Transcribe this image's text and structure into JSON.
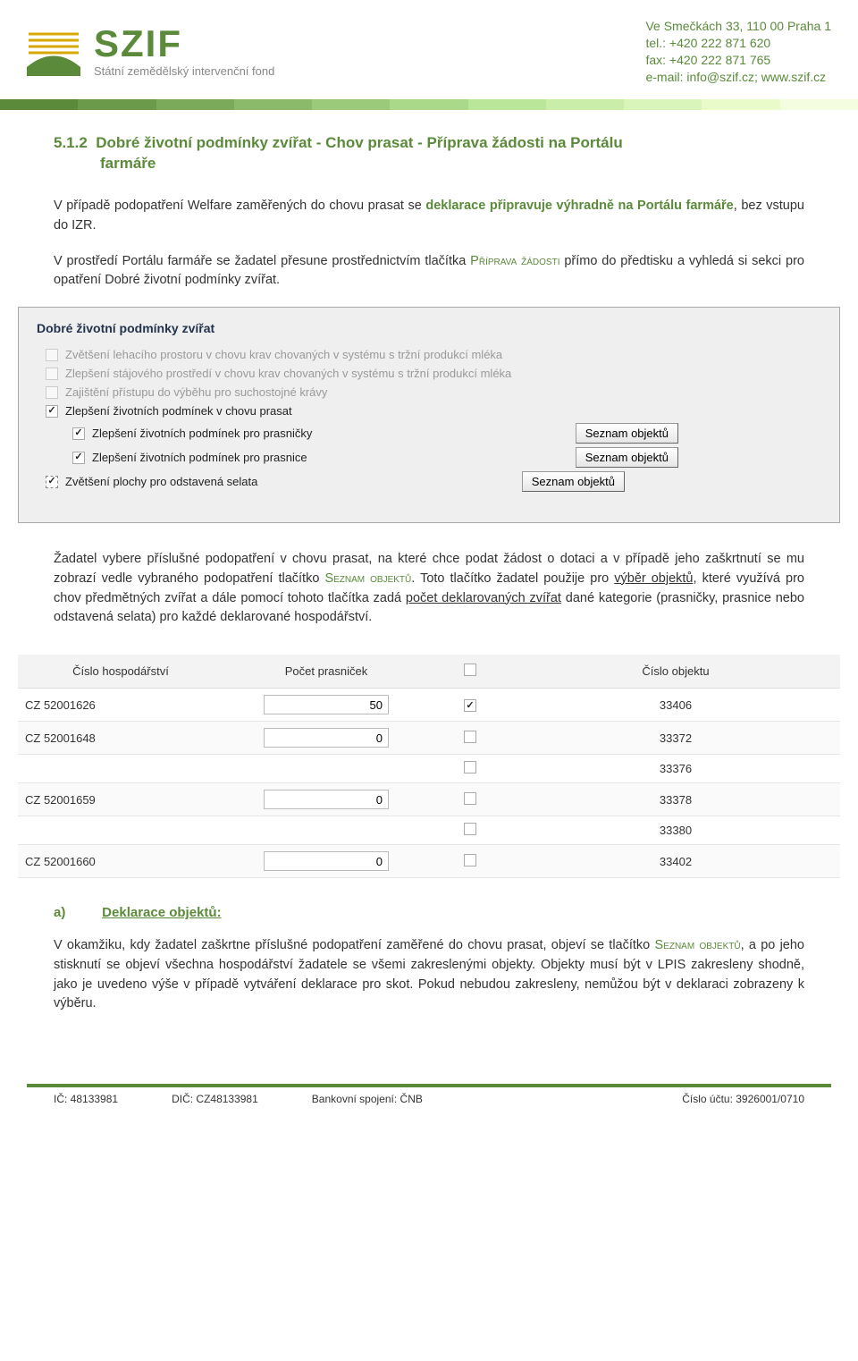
{
  "header": {
    "logo_main": "SZIF",
    "logo_sub": "Státní zemědělský intervenční fond",
    "addr": "Ve Smečkách 33, 110 00 Praha 1",
    "tel": "tel.: +420 222 871 620",
    "fax": "fax: +420 222 871 765",
    "mail": "e-mail: info@szif.cz; www.szif.cz"
  },
  "bar_colors": [
    "#5a8a3a",
    "#6a9a4a",
    "#7aaa5a",
    "#8aba6a",
    "#9aca7a",
    "#aad98a",
    "#bae69a",
    "#caeeaa",
    "#d9f5ba",
    "#e8fbc9",
    "#f4fde0"
  ],
  "section": {
    "num": "5.1.2",
    "title_a": "Dobré životní podmínky zvířat - Chov prasat -  Příprava žádosti na Portálu",
    "title_b": "farmáře"
  },
  "para1_a": "V případě podopatření Welfare zaměřených do chovu prasat se ",
  "para1_b": "deklarace připravuje výhradně na Portálu farmáře",
  "para1_c": ", bez vstupu do IZR.",
  "para2_a": "V prostředí Portálu farmáře se žadatel přesune prostřednictvím tlačítka ",
  "para2_b": "Příprava žádosti",
  "para2_c": " přímo do předtisku a vyhledá si sekci pro opatření Dobré životní podmínky zvířat.",
  "panel": {
    "title": "Dobré životní podmínky zvířat",
    "opt1": "Zvětšení lehacího prostoru v chovu krav chovaných v systému s tržní produkcí mléka",
    "opt2": "Zlepšení stájového prostředí v chovu krav chovaných v systému s tržní produkcí mléka",
    "opt3": "Zajištění přístupu do výběhu pro suchostojné krávy",
    "opt4": "Zlepšení životních podmínek v chovu prasat",
    "sub1": "Zlepšení životních podmínek pro prasničky",
    "sub2": "Zlepšení životních podmínek pro prasnice",
    "sub3": "Zvětšení plochy pro odstavená selata",
    "btn": "Seznam objektů"
  },
  "para3_a": "Žadatel vybere příslušné podopatření v chovu prasat, na které chce podat žádost o dotaci a v případě jeho zaškrtnutí se mu zobrazí vedle vybraného podopatření tlačítko ",
  "para3_b": "Seznam objektů",
  "para3_c": ". Toto tlačítko žadatel použije pro ",
  "para3_d": "výběr objektů",
  "para3_e": ", které využívá pro chov předmětných zvířat a dále pomocí tohoto tlačítka zadá ",
  "para3_f": "počet deklarovaných zvířat",
  "para3_g": " dané kategorie (prasničky, prasnice nebo odstavená selata) pro každé deklarované hospodářství.",
  "table": {
    "h1": "Číslo hospodářství",
    "h2": "Počet prasniček",
    "h3": "",
    "h4": "Číslo objektu",
    "rows": [
      {
        "farm": "CZ 52001626",
        "count": "50",
        "checked": true,
        "obj": "33406"
      },
      {
        "farm": "CZ 52001648",
        "count": "0",
        "checked": false,
        "obj": "33372"
      },
      {
        "farm": "",
        "count": "",
        "checked": false,
        "obj": "33376"
      },
      {
        "farm": "CZ 52001659",
        "count": "0",
        "checked": false,
        "obj": "33378"
      },
      {
        "farm": "",
        "count": "",
        "checked": false,
        "obj": "33380"
      },
      {
        "farm": "CZ 52001660",
        "count": "0",
        "checked": false,
        "obj": "33402"
      }
    ]
  },
  "subsec": {
    "letter": "a)",
    "title": "Deklarace objektů:"
  },
  "para4_a": "V okamžiku, kdy žadatel zaškrtne příslušné podopatření zaměřené do chovu prasat, objeví se tlačítko ",
  "para4_b": "Seznam objektů",
  "para4_c": ", a po jeho stisknutí se objeví všechna hospodářství žadatele se všemi zakreslenými objekty. Objekty musí být v LPIS zakresleny shodně, jako je uvedeno výše v případě vytváření deklarace pro skot. Pokud nebudou zakresleny, nemůžou být v deklaraci zobrazeny k výběru.",
  "footer": {
    "ic": "IČ: 48133981",
    "dic": "DIČ: CZ48133981",
    "bank": "Bankovní spojení: ČNB",
    "acct": "Číslo účtu: 3926001/0710"
  }
}
